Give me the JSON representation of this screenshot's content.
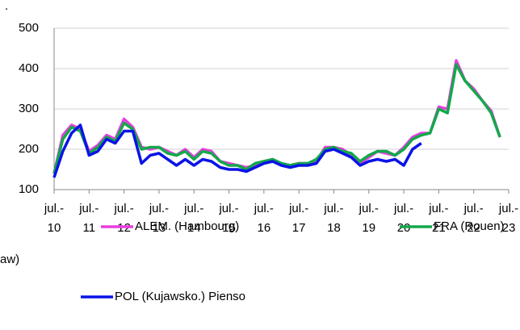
{
  "chart_data": {
    "type": "line",
    "x": [
      2010.5,
      2010.75,
      2011,
      2011.25,
      2011.5,
      2011.75,
      2012,
      2012.25,
      2012.5,
      2012.75,
      2013,
      2013.25,
      2013.5,
      2013.75,
      2014,
      2014.25,
      2014.5,
      2014.75,
      2015,
      2015.25,
      2015.5,
      2015.75,
      2016,
      2016.25,
      2016.5,
      2016.75,
      2017,
      2017.25,
      2017.5,
      2017.75,
      2018,
      2018.25,
      2018.5,
      2018.75,
      2019,
      2019.25,
      2019.5,
      2019.75,
      2020,
      2020.25,
      2020.5,
      2020.75,
      2021,
      2021.25,
      2021.5,
      2021.75,
      2022,
      2022.25,
      2022.5,
      2022.75,
      2023,
      2023.25
    ],
    "series": [
      {
        "name": "ALEM. (Hambourg)",
        "color": "#e83ee0",
        "values": [
          140,
          235,
          260,
          250,
          195,
          210,
          235,
          225,
          275,
          255,
          205,
          200,
          205,
          195,
          185,
          200,
          180,
          200,
          195,
          170,
          165,
          160,
          155,
          160,
          170,
          175,
          165,
          160,
          165,
          165,
          170,
          205,
          205,
          200,
          185,
          165,
          180,
          195,
          190,
          185,
          205,
          230,
          240,
          240,
          305,
          300,
          420,
          370,
          350,
          320,
          295,
          230
        ]
      },
      {
        "name": "FRA (Rouen)",
        "color": "#13a84a",
        "values": [
          140,
          225,
          255,
          245,
          190,
          205,
          230,
          220,
          265,
          250,
          200,
          205,
          205,
          190,
          185,
          195,
          175,
          195,
          190,
          170,
          160,
          160,
          150,
          165,
          170,
          175,
          165,
          160,
          165,
          165,
          175,
          200,
          205,
          195,
          190,
          170,
          185,
          195,
          195,
          185,
          200,
          225,
          235,
          240,
          300,
          290,
          410,
          370,
          345,
          320,
          290,
          230
        ]
      },
      {
        "name": "POL (Kujawsko.) Pienso",
        "color": "#0a14e6",
        "values": [
          130,
          195,
          240,
          260,
          185,
          195,
          225,
          215,
          245,
          245,
          165,
          185,
          190,
          175,
          160,
          175,
          160,
          175,
          170,
          155,
          150,
          150,
          145,
          155,
          165,
          170,
          160,
          155,
          160,
          160,
          165,
          195,
          200,
          190,
          180,
          160,
          170,
          175,
          170,
          175,
          160,
          200,
          215,
          null,
          null,
          null,
          null,
          null,
          null,
          null,
          null,
          null
        ]
      }
    ],
    "xlim": [
      2010.5,
      2023.5
    ],
    "xticks": [
      {
        "value": 2010.5,
        "label": "jul.-\n10"
      },
      {
        "value": 2011.5,
        "label": "jul.-\n11"
      },
      {
        "value": 2012.5,
        "label": "jul.-\n12"
      },
      {
        "value": 2013.5,
        "label": "jul.-\n13"
      },
      {
        "value": 2014.5,
        "label": "jul.-\n14"
      },
      {
        "value": 2015.5,
        "label": "jul.-\n15"
      },
      {
        "value": 2016.5,
        "label": "jul.-\n16"
      },
      {
        "value": 2017.5,
        "label": "jul.-\n17"
      },
      {
        "value": 2018.5,
        "label": "jul.-\n18"
      },
      {
        "value": 2019.5,
        "label": "jul.-\n19"
      },
      {
        "value": 2020.5,
        "label": "jul.-\n20"
      },
      {
        "value": 2021.5,
        "label": "jul.-\n21"
      },
      {
        "value": 2022.5,
        "label": "jul.-\n22"
      },
      {
        "value": 2023.5,
        "label": "jul.-\n23"
      }
    ],
    "ylim": [
      100,
      500
    ],
    "yticks": [
      100,
      200,
      300,
      400,
      500
    ],
    "grid": true,
    "annotations": [
      ".",
      "aw)"
    ]
  }
}
